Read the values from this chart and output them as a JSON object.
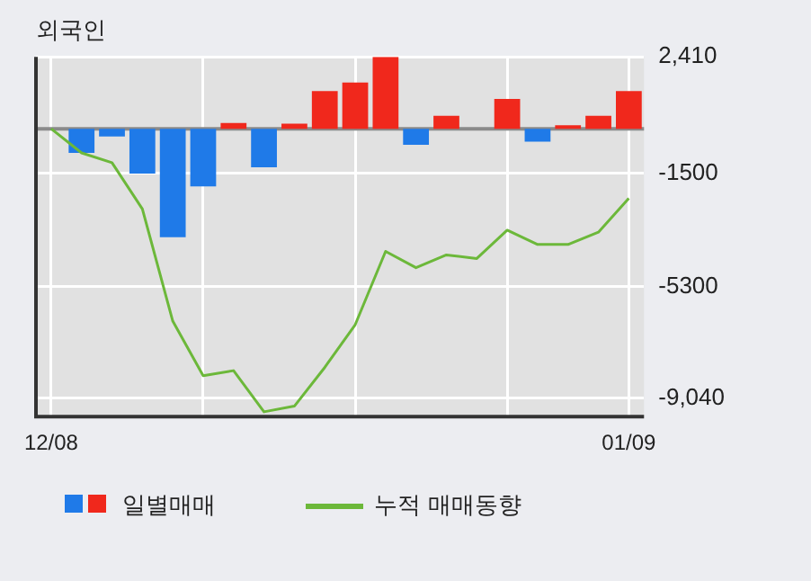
{
  "chart_data": {
    "type": "bar",
    "title": "외국인",
    "categories": [
      "12/08",
      null,
      null,
      null,
      null,
      null,
      null,
      null,
      null,
      null,
      null,
      null,
      null,
      null,
      null,
      null,
      null,
      null,
      null,
      "01/09"
    ],
    "series": [
      {
        "name": "일별매매",
        "colors": [
          "#f0281c",
          "#1f7ae8",
          "#1f7ae8",
          "#1f7ae8",
          "#1f7ae8",
          "#1f7ae8",
          "#f0281c",
          "#1f7ae8",
          "#f0281c",
          "#f0281c",
          "#f0281c",
          "#f0281c",
          "#1f7ae8",
          "#f0281c",
          "#f0281c",
          "#f0281c",
          "#1f7ae8",
          "#f0281c",
          "#f0281c",
          "#f0281c"
        ],
        "values": [
          0,
          -810,
          -260,
          -1500,
          -3640,
          -1930,
          190,
          -1290,
          170,
          1260,
          1550,
          2410,
          -540,
          430,
          0,
          1000,
          -430,
          120,
          430,
          1260
        ]
      },
      {
        "name": "누적 매매동향",
        "type": "line",
        "color": "#6cb83a",
        "values": [
          0,
          -810,
          -1140,
          -2690,
          -6450,
          -8280,
          -8110,
          -9490,
          -9300,
          -8000,
          -6570,
          -4110,
          -4660,
          -4230,
          -4350,
          -3400,
          -3880,
          -3880,
          -3470,
          -2330
        ]
      }
    ],
    "ylim": [
      -9650,
      2410
    ],
    "yticks": [
      {
        "value": 2410,
        "label": "2,410"
      },
      -1500,
      -5300,
      {
        "value": -9040,
        "label": "-9,040"
      }
    ],
    "ref_lines": [
      {
        "axis": "y",
        "value": 0,
        "color": "#8a8a8a"
      }
    ],
    "grid": true,
    "legend": "bottom",
    "marker": "none",
    "line_style": "solid"
  }
}
